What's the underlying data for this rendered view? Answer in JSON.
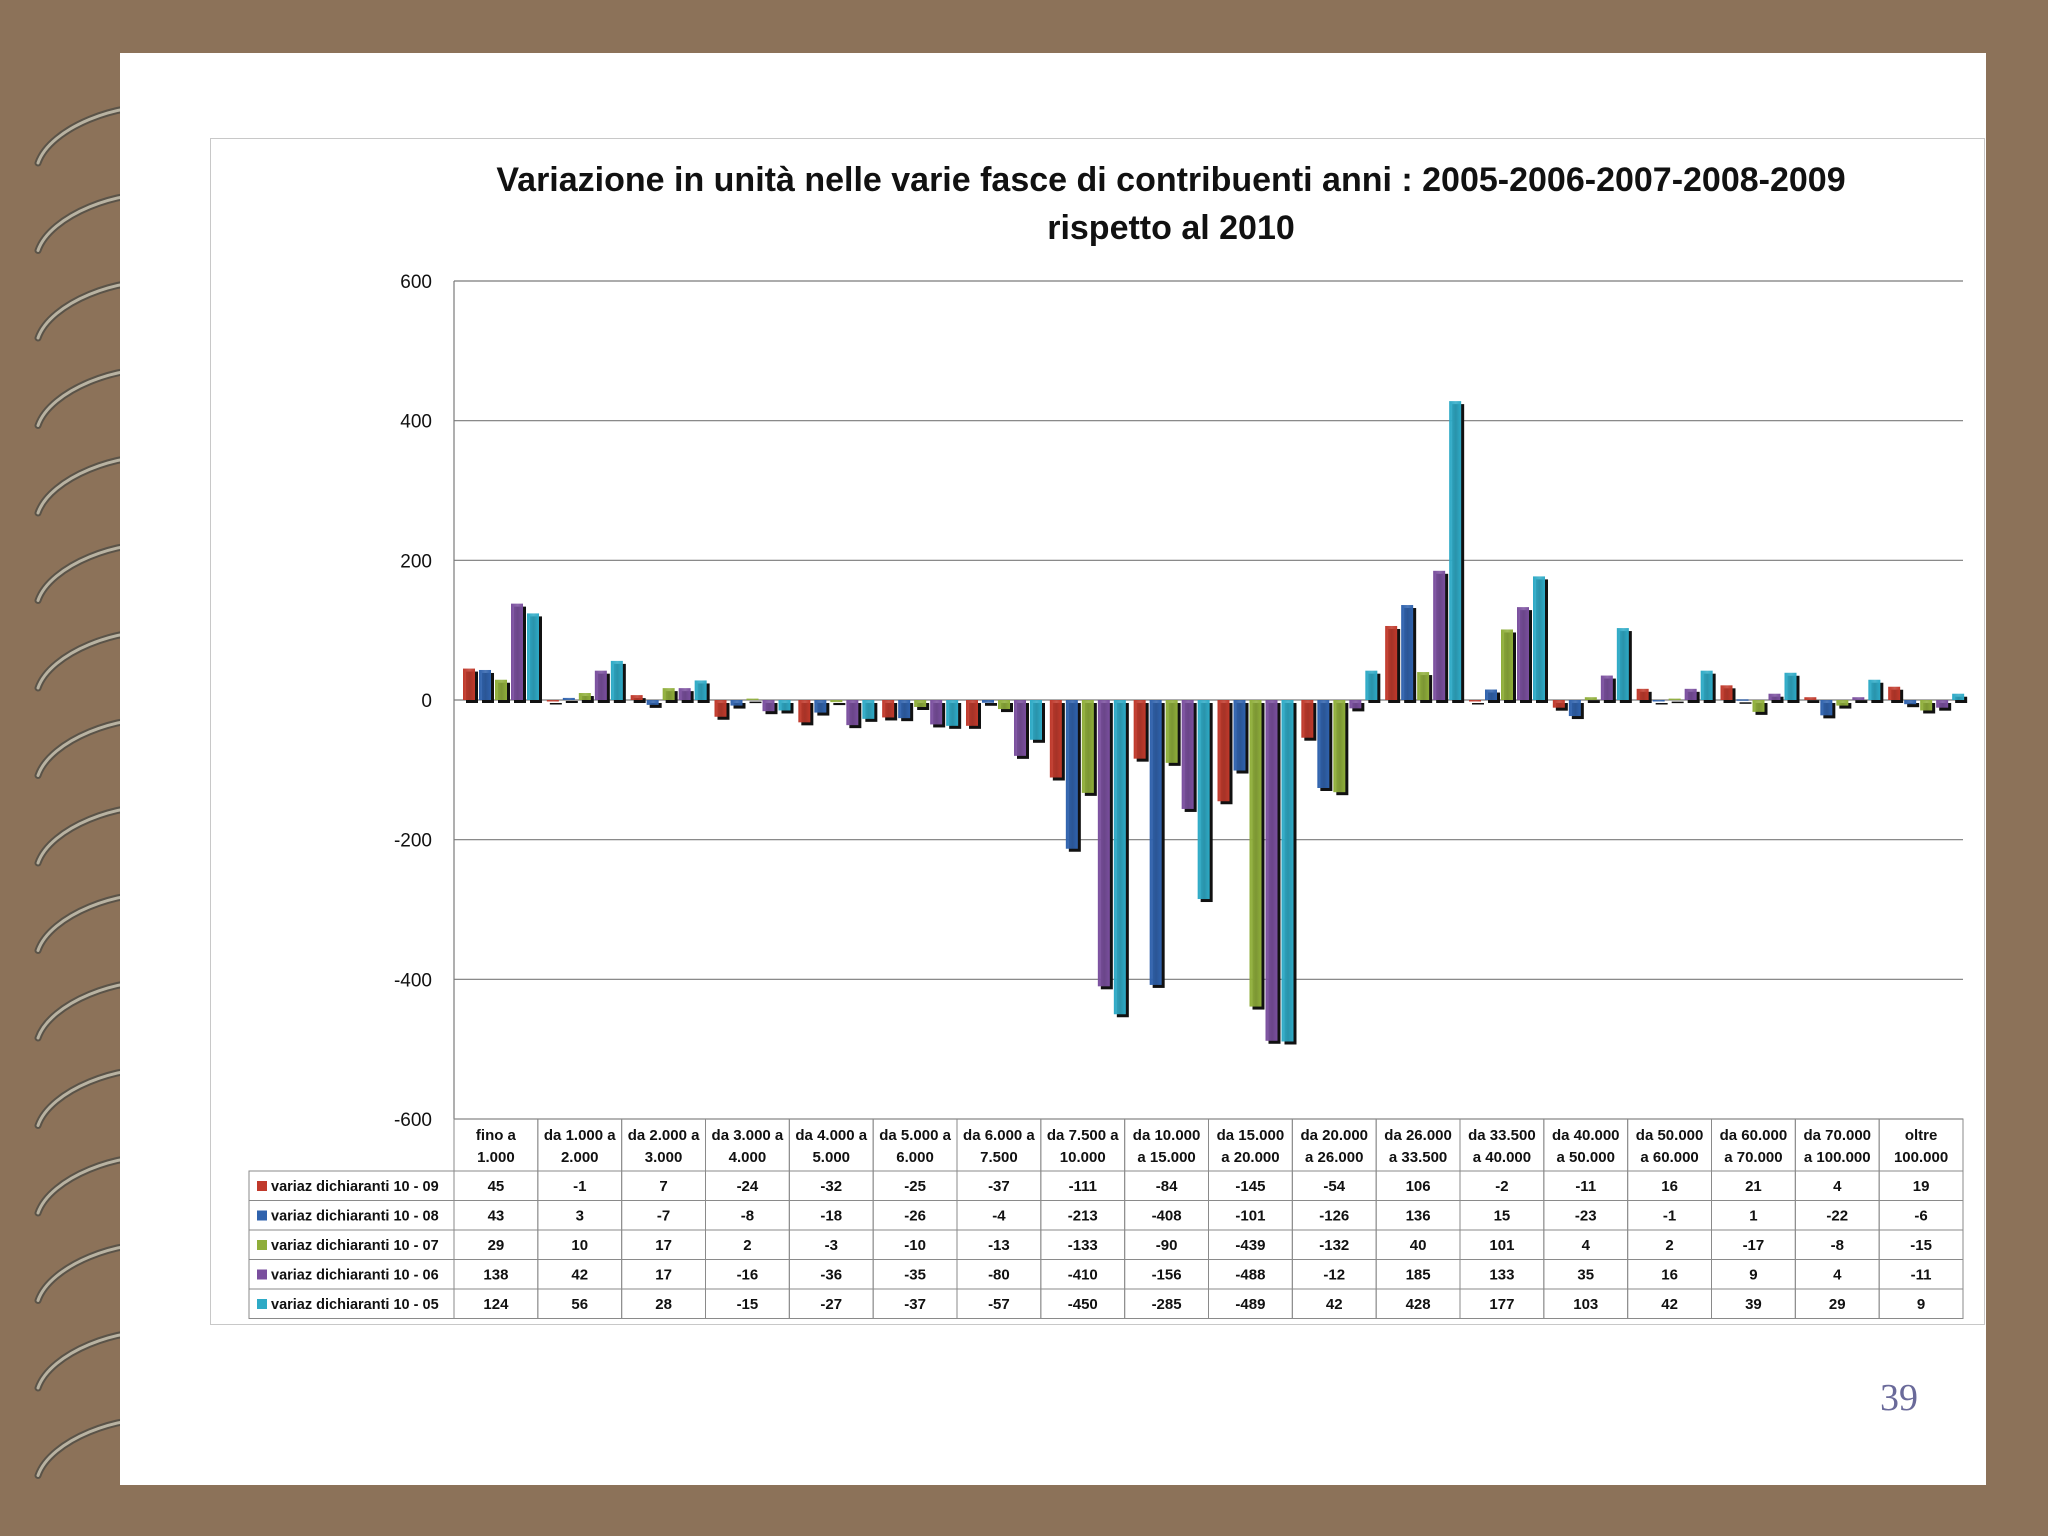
{
  "page": {
    "number": "39"
  },
  "colors": {
    "background": "#8c7259",
    "page": "#ffffff",
    "series": [
      "#c0392b",
      "#2f62ad",
      "#8fae3a",
      "#7a4f9e",
      "#2eaac6"
    ],
    "page_number": "#6a6a9a"
  },
  "chart_data": {
    "type": "bar",
    "title": "Variazione in unità nelle varie fasce di contribuenti anni : 2005-2006-2007-2008-2009",
    "subtitle": "rispetto al 2010",
    "xlabel": "",
    "ylabel": "",
    "ylim": [
      -600,
      600
    ],
    "yticks": [
      600,
      400,
      200,
      0,
      -200,
      -400,
      -600
    ],
    "grid": true,
    "legend": "data-table-left",
    "categories": [
      [
        "fino a",
        "1.000"
      ],
      [
        "da 1.000 a",
        "2.000"
      ],
      [
        "da 2.000 a",
        "3.000"
      ],
      [
        "da 3.000 a",
        "4.000"
      ],
      [
        "da 4.000 a",
        "5.000"
      ],
      [
        "da 5.000 a",
        "6.000"
      ],
      [
        "da 6.000 a",
        "7.500"
      ],
      [
        "da 7.500 a",
        "10.000"
      ],
      [
        "da 10.000",
        "a 15.000"
      ],
      [
        "da 15.000",
        "a 20.000"
      ],
      [
        "da 20.000",
        "a 26.000"
      ],
      [
        "da 26.000",
        "a 33.500"
      ],
      [
        "da 33.500",
        "a 40.000"
      ],
      [
        "da 40.000",
        "a 50.000"
      ],
      [
        "da 50.000",
        "a 60.000"
      ],
      [
        "da 60.000",
        "a 70.000"
      ],
      [
        "da 70.000",
        "a 100.000"
      ],
      [
        "oltre",
        "100.000"
      ]
    ],
    "series": [
      {
        "name": "variaz dichiaranti 10 - 09",
        "values": [
          45,
          -1,
          7,
          -24,
          -32,
          -25,
          -37,
          -111,
          -84,
          -145,
          -54,
          106,
          -2,
          -11,
          16,
          21,
          4,
          19
        ]
      },
      {
        "name": "variaz dichiaranti 10 - 08",
        "values": [
          43,
          3,
          -7,
          -8,
          -18,
          -26,
          -4,
          -213,
          -408,
          -101,
          -126,
          136,
          15,
          -23,
          -1,
          1,
          -22,
          -6
        ]
      },
      {
        "name": "variaz dichiaranti 10 - 07",
        "values": [
          29,
          10,
          17,
          2,
          -3,
          -10,
          -13,
          -133,
          -90,
          -439,
          -132,
          40,
          101,
          4,
          2,
          -17,
          -8,
          -15
        ]
      },
      {
        "name": "variaz dichiaranti 10 - 06",
        "values": [
          138,
          42,
          17,
          -16,
          -36,
          -35,
          -80,
          -410,
          -156,
          -488,
          -12,
          185,
          133,
          35,
          16,
          9,
          4,
          -11
        ]
      },
      {
        "name": "variaz dichiaranti 10 - 05",
        "values": [
          124,
          56,
          28,
          -15,
          -27,
          -37,
          -57,
          -450,
          -285,
          -489,
          42,
          428,
          177,
          103,
          42,
          39,
          29,
          9
        ]
      }
    ]
  }
}
